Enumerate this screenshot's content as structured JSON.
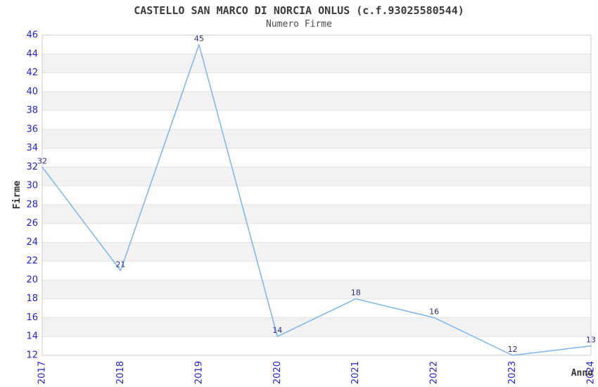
{
  "page": {
    "title": "CASTELLO SAN MARCO DI NORCIA ONLUS (c.f.93025580544)",
    "subtitle": "Numero Firme"
  },
  "chart_data": {
    "type": "line",
    "title": "CASTELLO SAN MARCO DI NORCIA ONLUS (c.f.93025580544)",
    "subtitle": "Numero Firme",
    "xlabel": "Anno",
    "ylabel": "Firme",
    "categories": [
      "2017",
      "2018",
      "2019",
      "2020",
      "2021",
      "2022",
      "2023",
      "2024"
    ],
    "series": [
      {
        "name": "Numero Firme",
        "values": [
          32,
          21,
          45,
          14,
          18,
          16,
          12,
          13
        ]
      }
    ],
    "ylim": [
      12,
      46
    ],
    "ytick_step": 2,
    "grid": "horizontal",
    "background_bands": "alternating 2-unit gray/white stripes",
    "legend_position": "none",
    "data_labels_shown": true,
    "x_tick_rotation_deg": -90,
    "colors": {
      "line": "#7cb5ec",
      "tick_label": "#2222cc",
      "data_label": "#2a2a85",
      "band_fill": "#f2f2f2",
      "grid_line": "#e3e3e3",
      "plot_border": "#cccccc",
      "title_text": "#3c3c3c",
      "axis_title_text": "#333333"
    }
  }
}
